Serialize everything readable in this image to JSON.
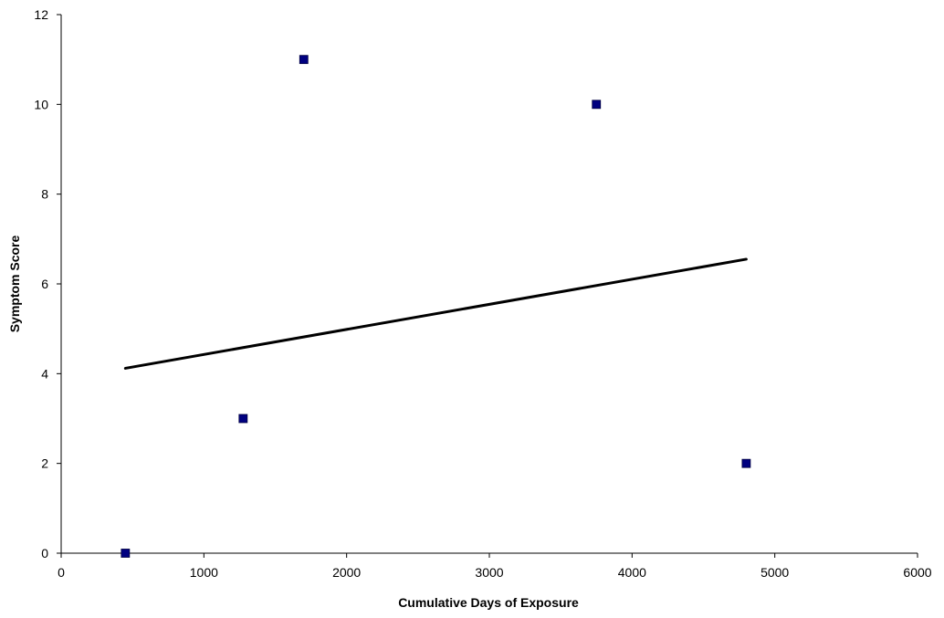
{
  "chart_data": {
    "type": "scatter",
    "xlabel": "Cumulative Days of Exposure",
    "ylabel": "Symptom Score",
    "xlim": [
      0,
      6000
    ],
    "ylim": [
      0,
      12
    ],
    "xticks": [
      0,
      1000,
      2000,
      3000,
      4000,
      5000,
      6000
    ],
    "yticks": [
      0,
      2,
      4,
      6,
      8,
      10,
      12
    ],
    "grid": false,
    "legend": "none",
    "series": [
      {
        "marker": "square",
        "color": "#000080",
        "points": [
          {
            "x": 450,
            "y": 0
          },
          {
            "x": 1275,
            "y": 3
          },
          {
            "x": 1700,
            "y": 11
          },
          {
            "x": 3750,
            "y": 10
          },
          {
            "x": 4800,
            "y": 2
          }
        ]
      }
    ],
    "trendline": {
      "type": "linear",
      "color": "#000000",
      "from": {
        "x": 450,
        "y": 4.12
      },
      "to": {
        "x": 4800,
        "y": 6.55
      }
    }
  }
}
